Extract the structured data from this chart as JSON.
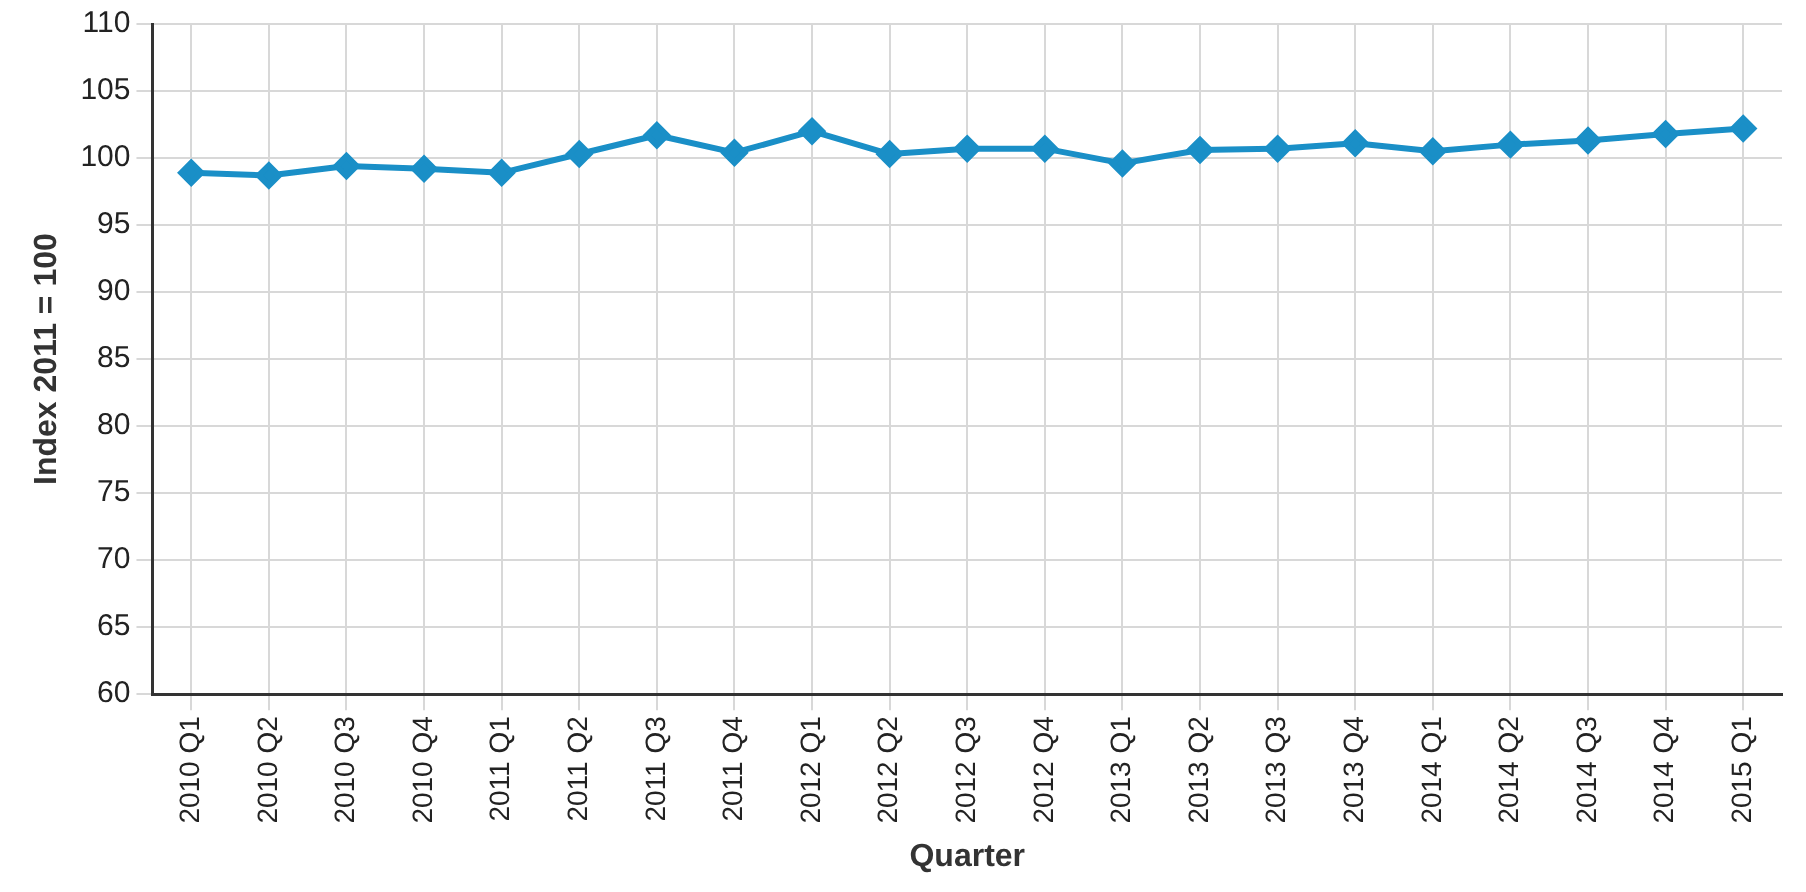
{
  "chart_data": {
    "type": "line",
    "xlabel": "Quarter",
    "ylabel": "Index 2011 = 100",
    "categories": [
      "2010 Q1",
      "2010 Q2",
      "2010 Q3",
      "2010 Q4",
      "2011 Q1",
      "2011 Q2",
      "2011 Q3",
      "2011 Q4",
      "2012 Q1",
      "2012 Q2",
      "2012 Q3",
      "2012 Q4",
      "2013 Q1",
      "2013 Q2",
      "2013 Q3",
      "2013 Q4",
      "2014 Q1",
      "2014 Q2",
      "2014 Q3",
      "2014 Q4",
      "2015 Q1"
    ],
    "series": [
      {
        "color": "#1a8fc7",
        "values": [
          98.9,
          98.7,
          99.4,
          99.2,
          98.9,
          100.3,
          101.7,
          100.4,
          102,
          100.3,
          100.7,
          100.7,
          99.6,
          100.6,
          100.7,
          101.1,
          100.5,
          101,
          101.3,
          101.8,
          102.2
        ]
      }
    ],
    "ylim": [
      60,
      110
    ],
    "yticks": [
      60,
      65,
      70,
      75,
      80,
      85,
      90,
      95,
      100,
      105,
      110
    ],
    "grid": true,
    "legend": false,
    "marker": "diamond",
    "line_style": "solid"
  }
}
